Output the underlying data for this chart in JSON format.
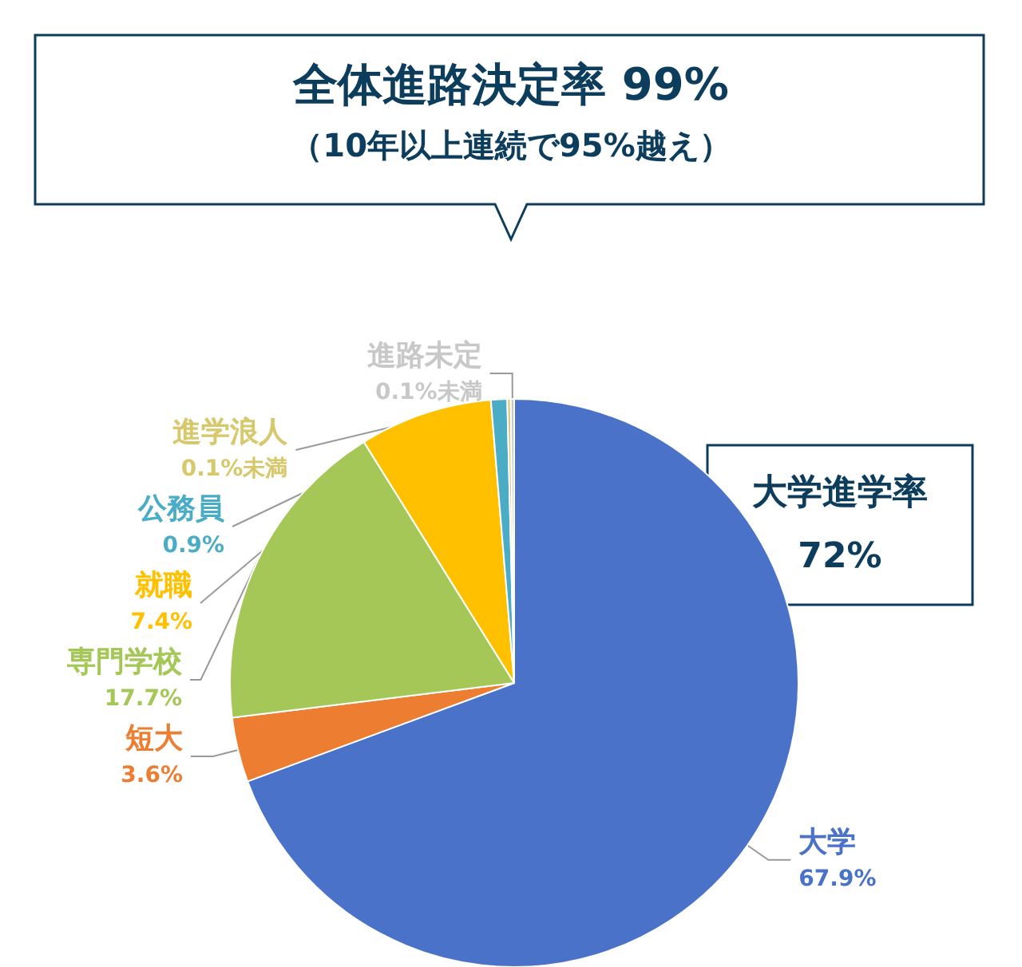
{
  "chart_data": {
    "type": "pie",
    "title": "全体進路決定率 99%",
    "subtitle": "（10年以上連続で95%越え）",
    "categories": [
      "大学",
      "短大",
      "専門学校",
      "就職",
      "公務員",
      "進学浪人",
      "進路未定"
    ],
    "values": [
      67.9,
      3.6,
      17.7,
      7.4,
      0.9,
      0.05,
      0.05
    ],
    "value_labels": [
      "67.9%",
      "3.6%",
      "17.7%",
      "7.4%",
      "0.9%",
      "0.1%未満",
      "0.1%未満"
    ],
    "colors": [
      "#4a72c8",
      "#ed7d31",
      "#a5c757",
      "#ffc000",
      "#4bacc6",
      "#d6c86b",
      "#c8c8c8"
    ],
    "annotations": [
      "大学進学率 72%"
    ],
    "legend": false
  }
}
